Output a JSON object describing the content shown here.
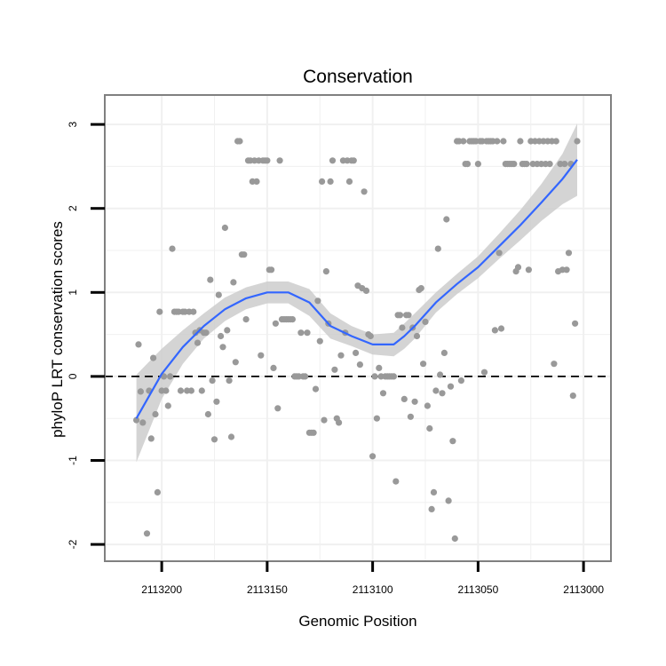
{
  "chart_data": {
    "type": "scatter",
    "title": "Conservation",
    "xlabel": "Genomic Position",
    "ylabel": "phyloP LRT conservation scores",
    "x_reversed": true,
    "xlim": [
      2113227,
      2112987
    ],
    "ylim": [
      -2.2,
      3.35
    ],
    "x_ticks": [
      2113200,
      2113150,
      2113100,
      2113050,
      2113000
    ],
    "x_tick_labels": [
      "2113200",
      "2113150",
      "2113100",
      "2113050",
      "2113000"
    ],
    "y_ticks": [
      -2,
      -1,
      0,
      1,
      2,
      3
    ],
    "y_tick_labels": [
      "-2",
      "-1",
      "0",
      "1",
      "2",
      "3"
    ],
    "grid": true,
    "reference_line": {
      "y": 0,
      "style": "dashed"
    },
    "colors": {
      "points": "#999999",
      "smooth_line": "#3366ff",
      "confidence_band": "#cccccc",
      "panel_border": "#808080",
      "grid": "#f0f0f0"
    },
    "points": [
      {
        "x": 2113212,
        "y": -0.52
      },
      {
        "x": 2113211,
        "y": 0.38
      },
      {
        "x": 2113210,
        "y": -0.18
      },
      {
        "x": 2113209,
        "y": -0.55
      },
      {
        "x": 2113207,
        "y": -1.87
      },
      {
        "x": 2113206,
        "y": -0.17
      },
      {
        "x": 2113205,
        "y": -0.74
      },
      {
        "x": 2113204,
        "y": 0.22
      },
      {
        "x": 2113203,
        "y": -0.45
      },
      {
        "x": 2113202,
        "y": -1.38
      },
      {
        "x": 2113201,
        "y": 0.77
      },
      {
        "x": 2113200,
        "y": -0.17
      },
      {
        "x": 2113199,
        "y": 0.0
      },
      {
        "x": 2113198,
        "y": -0.17
      },
      {
        "x": 2113197,
        "y": -0.35
      },
      {
        "x": 2113196,
        "y": 0.0
      },
      {
        "x": 2113195,
        "y": 1.52
      },
      {
        "x": 2113194,
        "y": 0.77
      },
      {
        "x": 2113193,
        "y": 0.77
      },
      {
        "x": 2113192,
        "y": 0.77
      },
      {
        "x": 2113191,
        "y": -0.17
      },
      {
        "x": 2113190,
        "y": 0.77
      },
      {
        "x": 2113189,
        "y": 0.77
      },
      {
        "x": 2113188,
        "y": -0.17
      },
      {
        "x": 2113187,
        "y": 0.77
      },
      {
        "x": 2113186,
        "y": -0.17
      },
      {
        "x": 2113185,
        "y": 0.77
      },
      {
        "x": 2113184,
        "y": 0.52
      },
      {
        "x": 2113183,
        "y": 0.4
      },
      {
        "x": 2113182,
        "y": 0.55
      },
      {
        "x": 2113181,
        "y": -0.17
      },
      {
        "x": 2113180,
        "y": 0.52
      },
      {
        "x": 2113179,
        "y": 0.52
      },
      {
        "x": 2113178,
        "y": -0.45
      },
      {
        "x": 2113177,
        "y": 1.15
      },
      {
        "x": 2113176,
        "y": -0.05
      },
      {
        "x": 2113175,
        "y": -0.75
      },
      {
        "x": 2113174,
        "y": -0.3
      },
      {
        "x": 2113173,
        "y": 0.97
      },
      {
        "x": 2113172,
        "y": 0.48
      },
      {
        "x": 2113171,
        "y": 0.35
      },
      {
        "x": 2113170,
        "y": 1.77
      },
      {
        "x": 2113169,
        "y": 0.55
      },
      {
        "x": 2113168,
        "y": -0.05
      },
      {
        "x": 2113167,
        "y": -0.72
      },
      {
        "x": 2113166,
        "y": 1.12
      },
      {
        "x": 2113165,
        "y": 0.17
      },
      {
        "x": 2113164,
        "y": 2.8
      },
      {
        "x": 2113163,
        "y": 2.8
      },
      {
        "x": 2113162,
        "y": 1.45
      },
      {
        "x": 2113161,
        "y": 1.45
      },
      {
        "x": 2113160,
        "y": 0.68
      },
      {
        "x": 2113159,
        "y": 2.57
      },
      {
        "x": 2113158,
        "y": 2.57
      },
      {
        "x": 2113157,
        "y": 2.32
      },
      {
        "x": 2113156,
        "y": 2.57
      },
      {
        "x": 2113155,
        "y": 2.32
      },
      {
        "x": 2113154,
        "y": 2.57
      },
      {
        "x": 2113153,
        "y": 0.25
      },
      {
        "x": 2113152,
        "y": 2.57
      },
      {
        "x": 2113151,
        "y": 2.57
      },
      {
        "x": 2113150,
        "y": 2.57
      },
      {
        "x": 2113149,
        "y": 1.27
      },
      {
        "x": 2113148,
        "y": 1.27
      },
      {
        "x": 2113147,
        "y": 0.1
      },
      {
        "x": 2113146,
        "y": 0.63
      },
      {
        "x": 2113145,
        "y": -0.38
      },
      {
        "x": 2113144,
        "y": 2.57
      },
      {
        "x": 2113143,
        "y": 0.68
      },
      {
        "x": 2113142,
        "y": 0.68
      },
      {
        "x": 2113141,
        "y": 0.68
      },
      {
        "x": 2113140,
        "y": 0.68
      },
      {
        "x": 2113139,
        "y": 0.68
      },
      {
        "x": 2113138,
        "y": 0.68
      },
      {
        "x": 2113137,
        "y": 0.0
      },
      {
        "x": 2113136,
        "y": 0.0
      },
      {
        "x": 2113135,
        "y": 0.0
      },
      {
        "x": 2113134,
        "y": 0.52
      },
      {
        "x": 2113133,
        "y": 0.0
      },
      {
        "x": 2113132,
        "y": 0.0
      },
      {
        "x": 2113131,
        "y": 0.52
      },
      {
        "x": 2113130,
        "y": -0.67
      },
      {
        "x": 2113129,
        "y": -0.67
      },
      {
        "x": 2113128,
        "y": -0.67
      },
      {
        "x": 2113127,
        "y": -0.15
      },
      {
        "x": 2113126,
        "y": 0.9
      },
      {
        "x": 2113125,
        "y": 0.42
      },
      {
        "x": 2113124,
        "y": 2.32
      },
      {
        "x": 2113123,
        "y": -0.52
      },
      {
        "x": 2113122,
        "y": 1.25
      },
      {
        "x": 2113121,
        "y": 0.63
      },
      {
        "x": 2113120,
        "y": 2.32
      },
      {
        "x": 2113119,
        "y": 2.57
      },
      {
        "x": 2113118,
        "y": 0.08
      },
      {
        "x": 2113117,
        "y": -0.5
      },
      {
        "x": 2113116,
        "y": -0.55
      },
      {
        "x": 2113115,
        "y": 0.25
      },
      {
        "x": 2113114,
        "y": 2.57
      },
      {
        "x": 2113113,
        "y": 0.52
      },
      {
        "x": 2113112,
        "y": 2.57
      },
      {
        "x": 2113111,
        "y": 2.32
      },
      {
        "x": 2113110,
        "y": 2.57
      },
      {
        "x": 2113109,
        "y": 2.57
      },
      {
        "x": 2113108,
        "y": 0.28
      },
      {
        "x": 2113107,
        "y": 1.08
      },
      {
        "x": 2113106,
        "y": 0.14
      },
      {
        "x": 2113105,
        "y": 1.05
      },
      {
        "x": 2113104,
        "y": 2.2
      },
      {
        "x": 2113103,
        "y": 1.02
      },
      {
        "x": 2113102,
        "y": 0.5
      },
      {
        "x": 2113101,
        "y": 0.48
      },
      {
        "x": 2113100,
        "y": -0.95
      },
      {
        "x": 2113099,
        "y": 0.0
      },
      {
        "x": 2113098,
        "y": -0.5
      },
      {
        "x": 2113097,
        "y": 0.1
      },
      {
        "x": 2113096,
        "y": 0.0
      },
      {
        "x": 2113095,
        "y": -0.2
      },
      {
        "x": 2113094,
        "y": 0.0
      },
      {
        "x": 2113093,
        "y": 0.0
      },
      {
        "x": 2113092,
        "y": 0.0
      },
      {
        "x": 2113091,
        "y": 0.0
      },
      {
        "x": 2113090,
        "y": 0.0
      },
      {
        "x": 2113089,
        "y": -1.25
      },
      {
        "x": 2113088,
        "y": 0.73
      },
      {
        "x": 2113087,
        "y": 0.73
      },
      {
        "x": 2113086,
        "y": 0.58
      },
      {
        "x": 2113085,
        "y": -0.27
      },
      {
        "x": 2113084,
        "y": 0.73
      },
      {
        "x": 2113083,
        "y": 0.73
      },
      {
        "x": 2113082,
        "y": -0.48
      },
      {
        "x": 2113081,
        "y": 0.58
      },
      {
        "x": 2113080,
        "y": -0.3
      },
      {
        "x": 2113079,
        "y": 0.48
      },
      {
        "x": 2113078,
        "y": 1.03
      },
      {
        "x": 2113077,
        "y": 1.05
      },
      {
        "x": 2113076,
        "y": 0.15
      },
      {
        "x": 2113075,
        "y": 0.65
      },
      {
        "x": 2113074,
        "y": -0.35
      },
      {
        "x": 2113073,
        "y": -0.62
      },
      {
        "x": 2113072,
        "y": -1.58
      },
      {
        "x": 2113071,
        "y": -1.38
      },
      {
        "x": 2113070,
        "y": -0.17
      },
      {
        "x": 2113069,
        "y": 1.52
      },
      {
        "x": 2113068,
        "y": 0.02
      },
      {
        "x": 2113067,
        "y": -0.2
      },
      {
        "x": 2113066,
        "y": 0.28
      },
      {
        "x": 2113065,
        "y": 1.87
      },
      {
        "x": 2113064,
        "y": -1.48
      },
      {
        "x": 2113063,
        "y": -0.12
      },
      {
        "x": 2113062,
        "y": -0.77
      },
      {
        "x": 2113061,
        "y": -1.93
      },
      {
        "x": 2113060,
        "y": 2.8
      },
      {
        "x": 2113059,
        "y": 2.8
      },
      {
        "x": 2113058,
        "y": -0.05
      },
      {
        "x": 2113057,
        "y": 2.8
      },
      {
        "x": 2113056,
        "y": 2.53
      },
      {
        "x": 2113055,
        "y": 2.53
      },
      {
        "x": 2113054,
        "y": 2.8
      },
      {
        "x": 2113053,
        "y": 2.8
      },
      {
        "x": 2113052,
        "y": 2.8
      },
      {
        "x": 2113051,
        "y": 2.8
      },
      {
        "x": 2113050,
        "y": 2.53
      },
      {
        "x": 2113049,
        "y": 2.8
      },
      {
        "x": 2113048,
        "y": 2.8
      },
      {
        "x": 2113047,
        "y": 0.05
      },
      {
        "x": 2113046,
        "y": 2.8
      },
      {
        "x": 2113045,
        "y": 2.8
      },
      {
        "x": 2113044,
        "y": 2.8
      },
      {
        "x": 2113043,
        "y": 2.8
      },
      {
        "x": 2113042,
        "y": 0.55
      },
      {
        "x": 2113041,
        "y": 2.8
      },
      {
        "x": 2113040,
        "y": 1.47
      },
      {
        "x": 2113039,
        "y": 0.57
      },
      {
        "x": 2113038,
        "y": 2.8
      },
      {
        "x": 2113037,
        "y": 2.53
      },
      {
        "x": 2113036,
        "y": 2.53
      },
      {
        "x": 2113035,
        "y": 2.53
      },
      {
        "x": 2113034,
        "y": 2.53
      },
      {
        "x": 2113033,
        "y": 2.53
      },
      {
        "x": 2113032,
        "y": 1.25
      },
      {
        "x": 2113031,
        "y": 1.3
      },
      {
        "x": 2113030,
        "y": 2.8
      },
      {
        "x": 2113029,
        "y": 2.53
      },
      {
        "x": 2113028,
        "y": 2.53
      },
      {
        "x": 2113027,
        "y": 2.53
      },
      {
        "x": 2113026,
        "y": 1.27
      },
      {
        "x": 2113025,
        "y": 2.8
      },
      {
        "x": 2113024,
        "y": 2.53
      },
      {
        "x": 2113023,
        "y": 2.8
      },
      {
        "x": 2113022,
        "y": 2.53
      },
      {
        "x": 2113021,
        "y": 2.8
      },
      {
        "x": 2113020,
        "y": 2.53
      },
      {
        "x": 2113019,
        "y": 2.8
      },
      {
        "x": 2113018,
        "y": 2.53
      },
      {
        "x": 2113017,
        "y": 2.8
      },
      {
        "x": 2113016,
        "y": 2.53
      },
      {
        "x": 2113015,
        "y": 2.8
      },
      {
        "x": 2113014,
        "y": 0.15
      },
      {
        "x": 2113013,
        "y": 2.8
      },
      {
        "x": 2113012,
        "y": 1.25
      },
      {
        "x": 2113011,
        "y": 2.53
      },
      {
        "x": 2113010,
        "y": 1.27
      },
      {
        "x": 2113009,
        "y": 2.53
      },
      {
        "x": 2113008,
        "y": 1.27
      },
      {
        "x": 2113007,
        "y": 1.47
      },
      {
        "x": 2113006,
        "y": 2.53
      },
      {
        "x": 2113005,
        "y": -0.23
      },
      {
        "x": 2113004,
        "y": 0.63
      },
      {
        "x": 2113003,
        "y": 2.8
      }
    ],
    "smooth": {
      "x": [
        2113212,
        2113200,
        2113190,
        2113180,
        2113170,
        2113160,
        2113150,
        2113140,
        2113130,
        2113120,
        2113110,
        2113100,
        2113090,
        2113085,
        2113080,
        2113070,
        2113060,
        2113050,
        2113040,
        2113030,
        2113020,
        2113010,
        2113003
      ],
      "y": [
        -0.5,
        0.03,
        0.35,
        0.6,
        0.8,
        0.93,
        1.0,
        1.0,
        0.88,
        0.6,
        0.48,
        0.38,
        0.38,
        0.48,
        0.6,
        0.88,
        1.1,
        1.3,
        1.55,
        1.8,
        2.07,
        2.35,
        2.58
      ],
      "lower": [
        -1.02,
        -0.27,
        0.15,
        0.45,
        0.66,
        0.8,
        0.87,
        0.87,
        0.72,
        0.45,
        0.36,
        0.26,
        0.24,
        0.33,
        0.45,
        0.76,
        0.98,
        1.17,
        1.4,
        1.62,
        1.85,
        2.05,
        2.15
      ],
      "upper": [
        0.02,
        0.33,
        0.55,
        0.75,
        0.94,
        1.06,
        1.13,
        1.13,
        1.04,
        0.75,
        0.6,
        0.5,
        0.52,
        0.63,
        0.75,
        1.0,
        1.22,
        1.43,
        1.7,
        1.98,
        2.29,
        2.65,
        3.01
      ]
    }
  }
}
